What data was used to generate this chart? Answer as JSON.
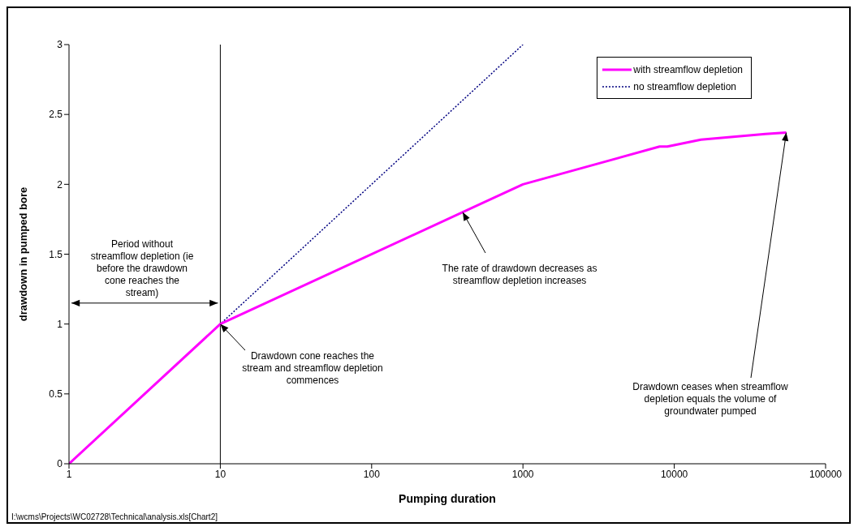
{
  "chart_data": {
    "type": "line",
    "xlabel": "Pumping duration",
    "ylabel": "drawdown in pumped bore",
    "log": "x",
    "xlim": [
      1,
      100000
    ],
    "xticks": [
      1,
      10,
      100,
      1000,
      10000,
      100000
    ],
    "ylim": [
      0,
      3
    ],
    "yticks": [
      0,
      0.5,
      1,
      1.5,
      2,
      2.5,
      3
    ],
    "series": [
      {
        "name": "with streamflow depletion",
        "color": "#ff00ff",
        "line_style": "solid",
        "x": [
          1,
          10,
          1000,
          8000,
          9000,
          15000,
          40000,
          55000
        ],
        "values": [
          0,
          1,
          2,
          2.27,
          2.27,
          2.32,
          2.36,
          2.37
        ]
      },
      {
        "name": "no streamflow depletion",
        "color": "#000080",
        "line_style": "dotted",
        "x": [
          1,
          10,
          1000
        ],
        "values": [
          0,
          1,
          3
        ]
      }
    ],
    "ref_lines": [
      {
        "axis": "x",
        "value": 10,
        "color": "#000000",
        "line_style": "solid"
      }
    ],
    "legend": "top right",
    "grid": false,
    "annotations": [
      {
        "text": "Period without streamflow depletion (ie before the drawdown cone reaches the stream)",
        "x": 10,
        "y": 1.15
      },
      {
        "text": "Drawdown cone reaches the stream and streamflow depletion commences",
        "x": 10,
        "y": 1
      },
      {
        "text": "The rate of drawdown decreases as streamflow depletion increases",
        "x": 400,
        "y": 1.8
      },
      {
        "text": "Drawdown ceases when streamflow depletion equals the volume of groundwater pumped",
        "x": 55000,
        "y": 2.37
      },
      "I:\\wcms\\Projects\\WC02728\\Technical\\analysis.xls[Chart2]"
    ]
  }
}
